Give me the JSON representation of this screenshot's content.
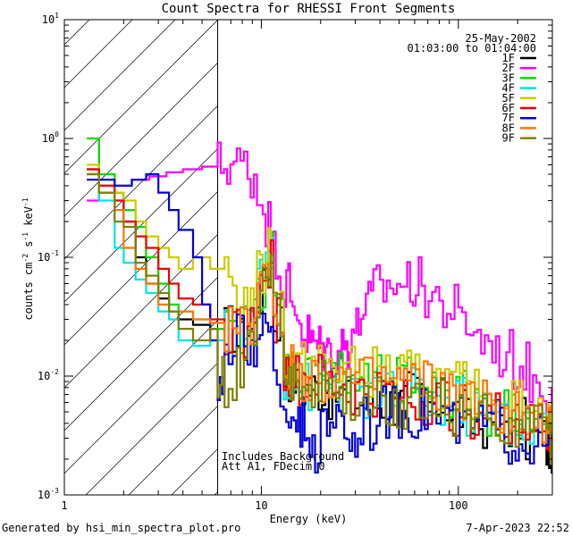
{
  "chart_data": {
    "type": "line",
    "title": "Count Spectra for RHESSI Front Segments",
    "xlabel": "Energy (keV)",
    "ylabel_parts": {
      "base": "counts cm",
      "exp1": "-2",
      "mid": " s",
      "exp2": "-1",
      "unit": " keV",
      "exp3": "-1"
    },
    "xscale": "log",
    "yscale": "log",
    "xlim": [
      1,
      300
    ],
    "ylim": [
      0.001,
      10
    ],
    "x_ticks": [
      {
        "value": 1,
        "label": "1"
      },
      {
        "value": 10,
        "label": "10"
      },
      {
        "value": 100,
        "label": "100"
      }
    ],
    "y_ticks": [
      {
        "value": 10,
        "base": "10",
        "exp": "1"
      },
      {
        "value": 1,
        "base": "10",
        "exp": "0"
      },
      {
        "value": 0.1,
        "base": "10",
        "exp": "-1"
      },
      {
        "value": 0.01,
        "base": "10",
        "exp": "-2"
      },
      {
        "value": 0.001,
        "base": "10",
        "exp": "-3"
      }
    ],
    "date": "25-May-2002",
    "time_range": "01:03:00 to 01:04:00",
    "annotation_lines": [
      "Includes Background",
      "Att A1, FDecim 0"
    ],
    "hatched_region": {
      "x_from": 1,
      "x_to": 6
    },
    "series": [
      {
        "name": "1F",
        "color": "#000000",
        "points": [
          [
            1.3,
            0.55
          ],
          [
            1.5,
            0.4
          ],
          [
            1.8,
            0.35
          ],
          [
            2.0,
            0.2
          ],
          [
            2.3,
            0.1
          ],
          [
            2.6,
            0.06
          ],
          [
            3.0,
            0.045
          ],
          [
            3.4,
            0.035
          ],
          [
            3.8,
            0.03
          ],
          [
            4.5,
            0.027
          ],
          [
            5.5,
            0.025
          ],
          [
            6.5,
            0.025
          ],
          [
            7.5,
            0.02
          ],
          [
            8.5,
            0.025
          ],
          [
            9.5,
            0.05
          ],
          [
            10.5,
            0.09
          ],
          [
            11.5,
            0.03
          ],
          [
            13,
            0.01
          ],
          [
            15,
            0.008
          ],
          [
            18,
            0.008
          ],
          [
            22,
            0.007
          ],
          [
            27,
            0.006
          ],
          [
            35,
            0.006
          ],
          [
            45,
            0.006
          ],
          [
            55,
            0.007
          ],
          [
            70,
            0.006
          ],
          [
            90,
            0.005
          ],
          [
            110,
            0.004
          ],
          [
            140,
            0.0045
          ],
          [
            180,
            0.004
          ],
          [
            220,
            0.003
          ],
          [
            280,
            0.0025
          ]
        ]
      },
      {
        "name": "2F",
        "color": "#ff00ff",
        "points": [
          [
            1.3,
            0.3
          ],
          [
            1.5,
            0.35
          ],
          [
            1.8,
            0.4
          ],
          [
            2.2,
            0.45
          ],
          [
            2.7,
            0.48
          ],
          [
            3.3,
            0.52
          ],
          [
            4,
            0.55
          ],
          [
            5,
            0.58
          ],
          [
            6,
            0.6
          ],
          [
            6.7,
            0.62
          ],
          [
            7.5,
            0.6
          ],
          [
            8.5,
            0.5
          ],
          [
            9.5,
            0.32
          ],
          [
            10.5,
            0.2
          ],
          [
            11.5,
            0.11
          ],
          [
            12.5,
            0.06
          ],
          [
            14,
            0.035
          ],
          [
            16,
            0.022
          ],
          [
            18,
            0.018
          ],
          [
            20,
            0.017
          ],
          [
            22,
            0.015
          ],
          [
            25,
            0.018
          ],
          [
            28,
            0.025
          ],
          [
            32,
            0.04
          ],
          [
            37,
            0.055
          ],
          [
            45,
            0.06
          ],
          [
            55,
            0.06
          ],
          [
            65,
            0.05
          ],
          [
            80,
            0.037
          ],
          [
            100,
            0.027
          ],
          [
            125,
            0.02
          ],
          [
            155,
            0.015
          ],
          [
            190,
            0.012
          ],
          [
            230,
            0.009
          ],
          [
            280,
            0.007
          ]
        ]
      },
      {
        "name": "3F",
        "color": "#00dd00",
        "points": [
          [
            1.3,
            1.0
          ],
          [
            1.5,
            0.5
          ],
          [
            1.8,
            0.3
          ],
          [
            2.0,
            0.25
          ],
          [
            2.3,
            0.18
          ],
          [
            2.6,
            0.1
          ],
          [
            3.0,
            0.06
          ],
          [
            3.4,
            0.04
          ],
          [
            3.8,
            0.035
          ],
          [
            4.5,
            0.03
          ],
          [
            5.5,
            0.025
          ],
          [
            6.5,
            0.022
          ],
          [
            7.5,
            0.025
          ],
          [
            8.5,
            0.03
          ],
          [
            9.5,
            0.06
          ],
          [
            10.5,
            0.11
          ],
          [
            11.5,
            0.035
          ],
          [
            13,
            0.012
          ],
          [
            15,
            0.01
          ],
          [
            18,
            0.011
          ],
          [
            22,
            0.01
          ],
          [
            27,
            0.009
          ],
          [
            35,
            0.009
          ],
          [
            45,
            0.009
          ],
          [
            55,
            0.009
          ],
          [
            70,
            0.008
          ],
          [
            90,
            0.007
          ],
          [
            110,
            0.006
          ],
          [
            140,
            0.005
          ],
          [
            180,
            0.005
          ],
          [
            220,
            0.004
          ],
          [
            280,
            0.0035
          ]
        ]
      },
      {
        "name": "4F",
        "color": "#00e5e5",
        "points": [
          [
            1.3,
            0.5
          ],
          [
            1.5,
            0.3
          ],
          [
            1.8,
            0.12
          ],
          [
            2.0,
            0.09
          ],
          [
            2.3,
            0.065
          ],
          [
            2.6,
            0.05
          ],
          [
            3.0,
            0.035
          ],
          [
            3.4,
            0.03
          ],
          [
            3.8,
            0.02
          ],
          [
            4.5,
            0.018
          ],
          [
            5.5,
            0.02
          ],
          [
            6.5,
            0.022
          ],
          [
            7.5,
            0.025
          ],
          [
            8.5,
            0.03
          ],
          [
            9.5,
            0.06
          ],
          [
            10.5,
            0.14
          ],
          [
            11.5,
            0.03
          ],
          [
            13,
            0.01
          ],
          [
            15,
            0.008
          ],
          [
            18,
            0.009
          ],
          [
            22,
            0.008
          ],
          [
            27,
            0.007
          ],
          [
            35,
            0.007
          ],
          [
            45,
            0.007
          ],
          [
            55,
            0.007
          ],
          [
            70,
            0.006
          ],
          [
            90,
            0.006
          ],
          [
            110,
            0.005
          ],
          [
            140,
            0.005
          ],
          [
            180,
            0.004
          ],
          [
            220,
            0.0035
          ],
          [
            280,
            0.003
          ]
        ]
      },
      {
        "name": "5F",
        "color": "#cccc00",
        "points": [
          [
            1.3,
            0.6
          ],
          [
            1.5,
            0.45
          ],
          [
            1.8,
            0.35
          ],
          [
            2.0,
            0.3
          ],
          [
            2.3,
            0.2
          ],
          [
            2.6,
            0.15
          ],
          [
            3.0,
            0.12
          ],
          [
            3.4,
            0.1
          ],
          [
            3.8,
            0.08
          ],
          [
            4.5,
            0.1
          ],
          [
            5.5,
            0.08
          ],
          [
            6.5,
            0.06
          ],
          [
            7.5,
            0.045
          ],
          [
            8.5,
            0.04
          ],
          [
            9.5,
            0.07
          ],
          [
            10.5,
            0.12
          ],
          [
            11.5,
            0.04
          ],
          [
            13,
            0.013
          ],
          [
            15,
            0.012
          ],
          [
            18,
            0.013
          ],
          [
            22,
            0.012
          ],
          [
            27,
            0.011
          ],
          [
            35,
            0.011
          ],
          [
            45,
            0.01
          ],
          [
            55,
            0.01
          ],
          [
            70,
            0.009
          ],
          [
            90,
            0.008
          ],
          [
            110,
            0.007
          ],
          [
            140,
            0.006
          ],
          [
            180,
            0.006
          ],
          [
            220,
            0.005
          ],
          [
            280,
            0.004
          ]
        ]
      },
      {
        "name": "6F",
        "color": "#ee0000",
        "points": [
          [
            1.3,
            0.55
          ],
          [
            1.5,
            0.4
          ],
          [
            1.8,
            0.3
          ],
          [
            2.0,
            0.2
          ],
          [
            2.3,
            0.15
          ],
          [
            2.6,
            0.12
          ],
          [
            3.0,
            0.08
          ],
          [
            3.4,
            0.06
          ],
          [
            3.8,
            0.045
          ],
          [
            4.5,
            0.04
          ],
          [
            5.5,
            0.03
          ],
          [
            6.5,
            0.025
          ],
          [
            7.5,
            0.022
          ],
          [
            8.5,
            0.025
          ],
          [
            9.5,
            0.05
          ],
          [
            10.5,
            0.09
          ],
          [
            11.5,
            0.03
          ],
          [
            13,
            0.01
          ],
          [
            15,
            0.009
          ],
          [
            18,
            0.009
          ],
          [
            22,
            0.008
          ],
          [
            27,
            0.007
          ],
          [
            35,
            0.007
          ],
          [
            45,
            0.007
          ],
          [
            55,
            0.006
          ],
          [
            70,
            0.006
          ],
          [
            90,
            0.005
          ],
          [
            110,
            0.005
          ],
          [
            140,
            0.0045
          ],
          [
            180,
            0.004
          ],
          [
            220,
            0.0035
          ],
          [
            280,
            0.003
          ]
        ]
      },
      {
        "name": "7F",
        "color": "#0000dd",
        "points": [
          [
            1.3,
            0.45
          ],
          [
            1.5,
            0.45
          ],
          [
            1.8,
            0.4
          ],
          [
            2.2,
            0.45
          ],
          [
            2.6,
            0.5
          ],
          [
            3.0,
            0.35
          ],
          [
            3.4,
            0.25
          ],
          [
            3.8,
            0.17
          ],
          [
            4.5,
            0.1
          ],
          [
            5.0,
            0.04
          ],
          [
            5.5,
            0.02
          ],
          [
            6.0,
            0.01
          ],
          [
            6.5,
            0.015
          ],
          [
            7.5,
            0.02
          ],
          [
            8.5,
            0.015
          ],
          [
            9.5,
            0.03
          ],
          [
            10.5,
            0.02
          ],
          [
            11.5,
            0.008
          ],
          [
            13,
            0.005
          ],
          [
            15,
            0.004
          ],
          [
            17,
            0.002
          ],
          [
            20,
            0.005
          ],
          [
            24,
            0.004
          ],
          [
            28,
            0.003
          ],
          [
            33,
            0.004
          ],
          [
            40,
            0.005
          ],
          [
            48,
            0.005
          ],
          [
            58,
            0.005
          ],
          [
            70,
            0.005
          ],
          [
            90,
            0.004
          ],
          [
            110,
            0.004
          ],
          [
            140,
            0.0035
          ],
          [
            180,
            0.003
          ],
          [
            220,
            0.003
          ],
          [
            280,
            0.0025
          ]
        ]
      },
      {
        "name": "8F",
        "color": "#ff7700",
        "points": [
          [
            1.3,
            0.5
          ],
          [
            1.5,
            0.35
          ],
          [
            1.8,
            0.25
          ],
          [
            2.0,
            0.12
          ],
          [
            2.3,
            0.08
          ],
          [
            2.6,
            0.06
          ],
          [
            3.0,
            0.04
          ],
          [
            3.4,
            0.035
          ],
          [
            3.8,
            0.035
          ],
          [
            4.5,
            0.03
          ],
          [
            5.5,
            0.028
          ],
          [
            6.5,
            0.025
          ],
          [
            7.5,
            0.025
          ],
          [
            8.5,
            0.03
          ],
          [
            9.5,
            0.06
          ],
          [
            10.5,
            0.1
          ],
          [
            11.5,
            0.03
          ],
          [
            13,
            0.011
          ],
          [
            15,
            0.01
          ],
          [
            18,
            0.01
          ],
          [
            22,
            0.01
          ],
          [
            27,
            0.009
          ],
          [
            35,
            0.009
          ],
          [
            45,
            0.009
          ],
          [
            55,
            0.009
          ],
          [
            70,
            0.008
          ],
          [
            90,
            0.007
          ],
          [
            110,
            0.006
          ],
          [
            140,
            0.005
          ],
          [
            180,
            0.005
          ],
          [
            220,
            0.004
          ],
          [
            280,
            0.0035
          ]
        ]
      },
      {
        "name": "9F",
        "color": "#808000",
        "points": [
          [
            1.3,
            0.5
          ],
          [
            1.5,
            0.35
          ],
          [
            1.8,
            0.2
          ],
          [
            2.0,
            0.18
          ],
          [
            2.3,
            0.09
          ],
          [
            2.6,
            0.07
          ],
          [
            3.0,
            0.05
          ],
          [
            3.4,
            0.035
          ],
          [
            3.8,
            0.025
          ],
          [
            4.5,
            0.02
          ],
          [
            5.5,
            0.025
          ],
          [
            6.0,
            0.01
          ],
          [
            6.5,
            0.008
          ],
          [
            7.5,
            0.012
          ],
          [
            8.5,
            0.02
          ],
          [
            9.5,
            0.05
          ],
          [
            10.5,
            0.08
          ],
          [
            11.5,
            0.03
          ],
          [
            13,
            0.01
          ],
          [
            15,
            0.008
          ],
          [
            18,
            0.008
          ],
          [
            22,
            0.007
          ],
          [
            27,
            0.006
          ],
          [
            35,
            0.006
          ],
          [
            45,
            0.006
          ],
          [
            55,
            0.006
          ],
          [
            70,
            0.006
          ],
          [
            90,
            0.005
          ],
          [
            110,
            0.005
          ],
          [
            140,
            0.0045
          ],
          [
            180,
            0.004
          ],
          [
            220,
            0.0035
          ],
          [
            280,
            0.003
          ]
        ]
      }
    ]
  },
  "footer": {
    "left": "Generated by hsi_min_spectra_plot.pro",
    "right": "7-Apr-2023 22:52"
  }
}
